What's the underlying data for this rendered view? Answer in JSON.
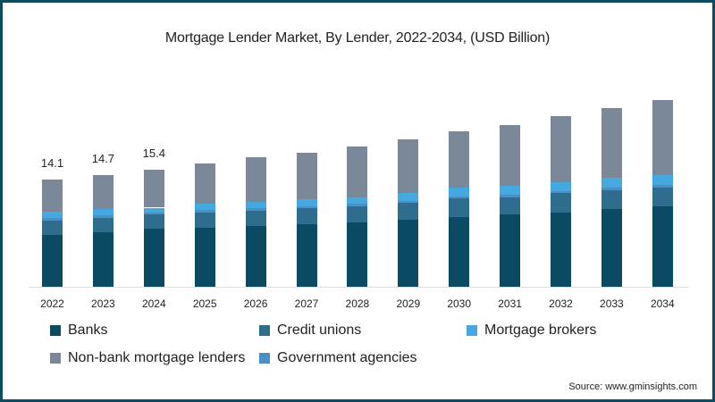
{
  "title": "Mortgage Lender Market, By Lender, 2022-2034, (USD Billion)",
  "source": "Source: www.gminsights.com",
  "colors": {
    "banks": "#0b4a63",
    "credit_unions": "#2f6d8f",
    "mortgage_brokers": "#45a9e0",
    "non_bank": "#7a8899",
    "government": "#4a8fc6",
    "border": "#0f4a5e"
  },
  "legend": [
    {
      "key": "banks",
      "label": "Banks"
    },
    {
      "key": "credit_unions",
      "label": "Credit unions"
    },
    {
      "key": "mortgage_brokers",
      "label": "Mortgage brokers"
    },
    {
      "key": "non_bank",
      "label": "Non-bank mortgage lenders"
    },
    {
      "key": "government",
      "label": "Government agencies"
    }
  ],
  "chart_data": {
    "type": "bar",
    "stacked": true,
    "title": "Mortgage Lender Market, By Lender, 2022-2034, (USD Billion)",
    "xlabel": "",
    "ylabel": "USD Billion",
    "categories": [
      "2022",
      "2023",
      "2024",
      "2025",
      "2026",
      "2027",
      "2028",
      "2029",
      "2030",
      "2031",
      "2032",
      "2033",
      "2034"
    ],
    "series": [
      {
        "name": "Banks",
        "values": [
          6.8,
          7.2,
          7.6,
          7.8,
          8.0,
          8.2,
          8.5,
          8.8,
          9.2,
          9.5,
          9.8,
          10.2,
          10.6
        ]
      },
      {
        "name": "Credit unions",
        "values": [
          1.9,
          1.9,
          1.9,
          2.0,
          2.0,
          2.1,
          2.1,
          2.2,
          2.4,
          2.3,
          2.5,
          2.5,
          2.5
        ]
      },
      {
        "name": "Government agencies",
        "values": [
          0.3,
          0.3,
          0.3,
          0.3,
          0.3,
          0.3,
          0.3,
          0.3,
          0.3,
          0.3,
          0.3,
          0.3,
          0.3
        ]
      },
      {
        "name": "Mortgage brokers",
        "values": [
          0.9,
          0.8,
          0.6,
          0.8,
          0.9,
          0.9,
          0.9,
          1.0,
          1.1,
          1.2,
          1.2,
          1.3,
          1.3
        ]
      },
      {
        "name": "Non-bank mortgage lenders",
        "values": [
          4.2,
          4.5,
          5.0,
          5.3,
          5.8,
          6.1,
          6.7,
          7.1,
          7.5,
          8.0,
          8.6,
          9.2,
          9.9
        ]
      }
    ],
    "totals": [
      14.1,
      14.7,
      15.4,
      16.2,
      17.0,
      17.6,
      18.5,
      19.4,
      20.5,
      21.3,
      22.4,
      23.5,
      24.6
    ],
    "data_labels": {
      "2022": "14.1",
      "2023": "14.7",
      "2024": "15.4"
    },
    "grid": false,
    "legend_position": "bottom"
  },
  "value_labels": [
    "14.1",
    "14.7",
    "15.4"
  ]
}
